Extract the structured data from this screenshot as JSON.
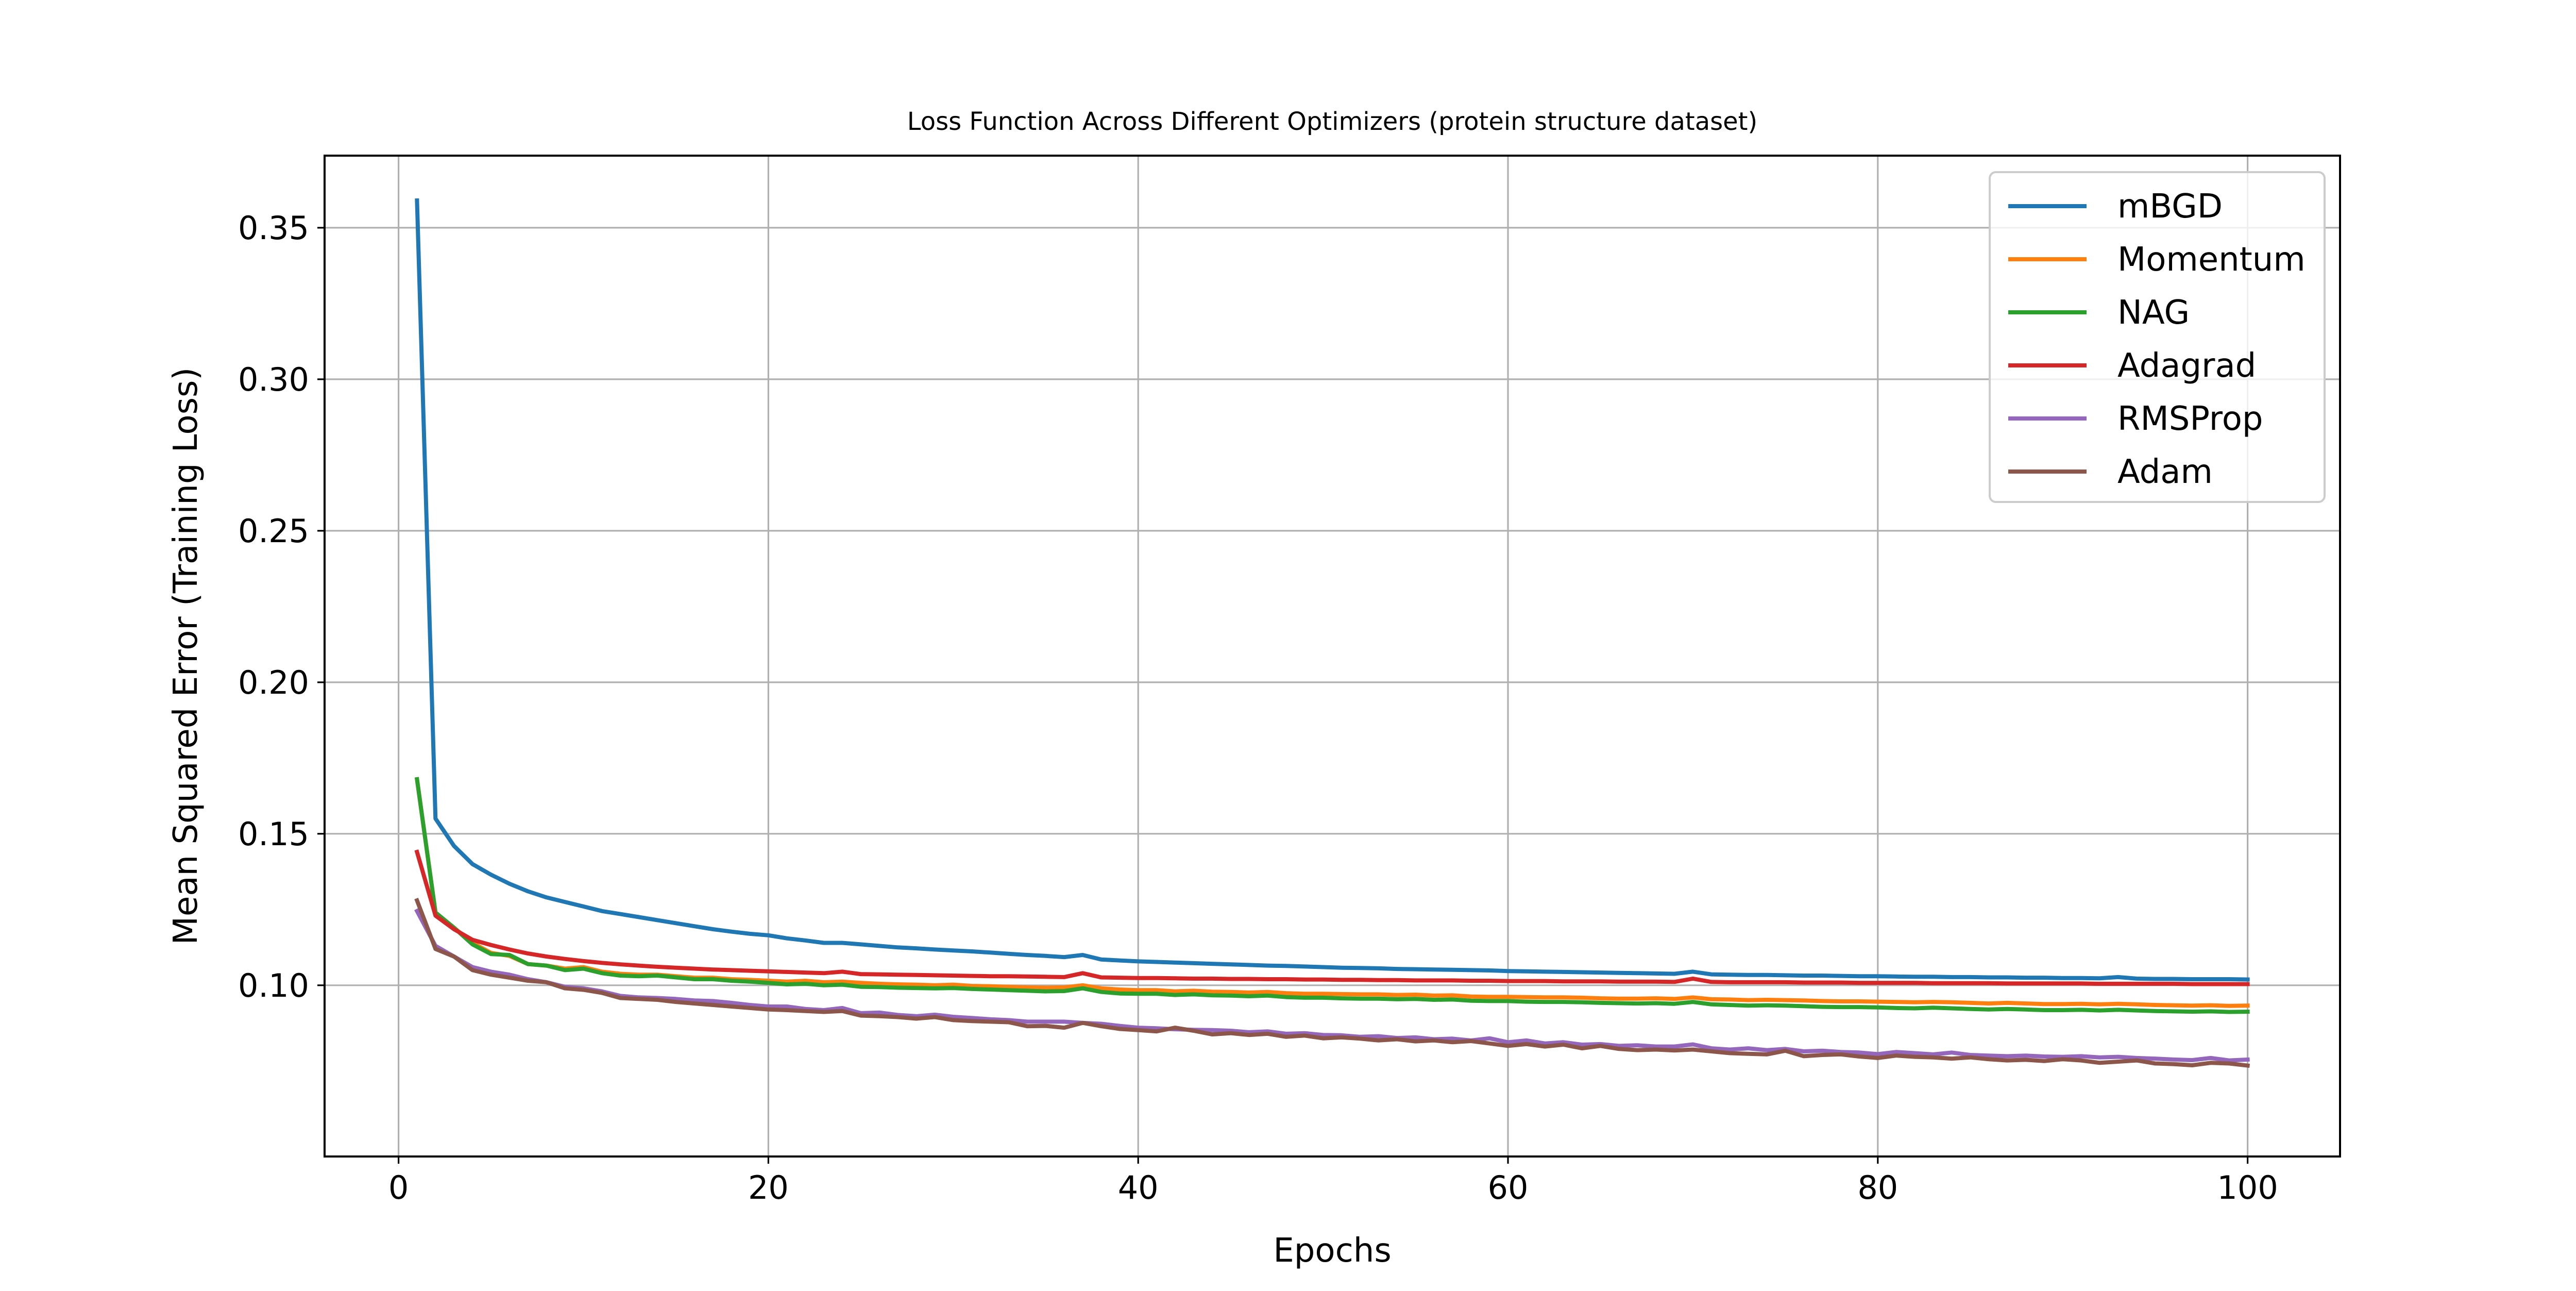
{
  "chart_data": {
    "type": "line",
    "title": "Loss Function Across Different Optimizers (protein structure dataset)",
    "xlabel": "Epochs",
    "ylabel": "Mean Squared Error (Training Loss)",
    "xlim": [
      -4,
      105
    ],
    "ylim": [
      0.0435,
      0.3738
    ],
    "grid": true,
    "legend_position": "upper right",
    "x_ticks": [
      0,
      20,
      40,
      60,
      80,
      100
    ],
    "x_tick_labels": [
      "0",
      "20",
      "40",
      "60",
      "80",
      "100"
    ],
    "y_ticks": [
      0.1,
      0.15,
      0.2,
      0.25,
      0.3,
      0.35
    ],
    "y_tick_labels": [
      "0.10",
      "0.15",
      "0.20",
      "0.25",
      "0.30",
      "0.35"
    ],
    "x": [
      1,
      2,
      3,
      4,
      5,
      6,
      7,
      8,
      9,
      10,
      11,
      12,
      13,
      14,
      15,
      16,
      17,
      18,
      19,
      20,
      21,
      22,
      23,
      24,
      25,
      26,
      27,
      28,
      29,
      30,
      31,
      32,
      33,
      34,
      35,
      36,
      37,
      38,
      39,
      40,
      41,
      42,
      43,
      44,
      45,
      46,
      47,
      48,
      49,
      50,
      51,
      52,
      53,
      54,
      55,
      56,
      57,
      58,
      59,
      60,
      61,
      62,
      63,
      64,
      65,
      66,
      67,
      68,
      69,
      70,
      71,
      72,
      73,
      74,
      75,
      76,
      77,
      78,
      79,
      80,
      81,
      82,
      83,
      84,
      85,
      86,
      87,
      88,
      89,
      90,
      91,
      92,
      93,
      94,
      95,
      96,
      97,
      98,
      99,
      100
    ],
    "series": [
      {
        "name": "mBGD",
        "color": "#1f77b4",
        "values": [
          0.359,
          0.155,
          0.146,
          0.14,
          0.1365,
          0.1335,
          0.131,
          0.129,
          0.1275,
          0.126,
          0.1245,
          0.1235,
          0.1225,
          0.1215,
          0.1205,
          0.1195,
          0.1185,
          0.1177,
          0.117,
          0.1165,
          0.1155,
          0.1148,
          0.114,
          0.114,
          0.1135,
          0.113,
          0.1125,
          0.1122,
          0.1118,
          0.1115,
          0.1112,
          0.1108,
          0.1104,
          0.11,
          0.1097,
          0.1093,
          0.11,
          0.1085,
          0.1082,
          0.1079,
          0.1077,
          0.1075,
          0.1073,
          0.1071,
          0.1069,
          0.1067,
          0.1065,
          0.1064,
          0.1062,
          0.106,
          0.1058,
          0.1057,
          0.1056,
          0.1054,
          0.1053,
          0.1052,
          0.1051,
          0.105,
          0.1049,
          0.1047,
          0.1046,
          0.1045,
          0.1044,
          0.1043,
          0.1042,
          0.1041,
          0.104,
          0.1039,
          0.1038,
          0.1045,
          0.1036,
          0.1035,
          0.1034,
          0.1034,
          0.1033,
          0.1032,
          0.1032,
          0.1031,
          0.103,
          0.103,
          0.1029,
          0.1028,
          0.1028,
          0.1027,
          0.1027,
          0.1026,
          0.1026,
          0.1025,
          0.1025,
          0.1024,
          0.1024,
          0.1023,
          0.1027,
          0.1022,
          0.1021,
          0.1021,
          0.102,
          0.102,
          0.102,
          0.1019
        ]
      },
      {
        "name": "Momentum",
        "color": "#ff7f0e",
        "values": [
          0.168,
          0.124,
          0.119,
          0.114,
          0.1107,
          0.1097,
          0.107,
          0.1065,
          0.1055,
          0.106,
          0.1045,
          0.1038,
          0.1035,
          0.1035,
          0.103,
          0.1025,
          0.1025,
          0.102,
          0.1018,
          0.1015,
          0.1012,
          0.1015,
          0.101,
          0.1012,
          0.1008,
          0.1005,
          0.1003,
          0.1002,
          0.1,
          0.1002,
          0.0998,
          0.0997,
          0.0995,
          0.0993,
          0.0992,
          0.0993,
          0.1,
          0.099,
          0.0986,
          0.0984,
          0.0984,
          0.098,
          0.0982,
          0.0979,
          0.0978,
          0.0976,
          0.0978,
          0.0974,
          0.0972,
          0.0972,
          0.0971,
          0.097,
          0.097,
          0.0968,
          0.0969,
          0.0966,
          0.0967,
          0.0963,
          0.0962,
          0.0962,
          0.0961,
          0.096,
          0.096,
          0.0959,
          0.0957,
          0.0956,
          0.0956,
          0.0957,
          0.0955,
          0.096,
          0.0954,
          0.0953,
          0.0951,
          0.0952,
          0.0951,
          0.095,
          0.0948,
          0.0947,
          0.0947,
          0.0946,
          0.0945,
          0.0944,
          0.0945,
          0.0944,
          0.0942,
          0.094,
          0.0942,
          0.094,
          0.0938,
          0.0938,
          0.0939,
          0.0937,
          0.0939,
          0.0937,
          0.0935,
          0.0934,
          0.0933,
          0.0934,
          0.0932,
          0.0933
        ]
      },
      {
        "name": "NAG",
        "color": "#2ca02c",
        "values": [
          0.168,
          0.124,
          0.119,
          0.1135,
          0.1103,
          0.11,
          0.107,
          0.1065,
          0.105,
          0.1055,
          0.104,
          0.1032,
          0.103,
          0.1032,
          0.1026,
          0.102,
          0.102,
          0.1015,
          0.1012,
          0.1008,
          0.1003,
          0.1005,
          0.1,
          0.1002,
          0.0995,
          0.0994,
          0.0992,
          0.0991,
          0.099,
          0.0991,
          0.0988,
          0.0986,
          0.0984,
          0.0982,
          0.098,
          0.0981,
          0.099,
          0.0978,
          0.0973,
          0.0972,
          0.0972,
          0.0968,
          0.097,
          0.0967,
          0.0966,
          0.0964,
          0.0966,
          0.0961,
          0.0959,
          0.0959,
          0.0957,
          0.0956,
          0.0956,
          0.0954,
          0.0955,
          0.0952,
          0.0953,
          0.0949,
          0.0948,
          0.0948,
          0.0946,
          0.0945,
          0.0945,
          0.0944,
          0.0942,
          0.0941,
          0.094,
          0.0941,
          0.0939,
          0.0945,
          0.0937,
          0.0935,
          0.0933,
          0.0934,
          0.0933,
          0.0931,
          0.0929,
          0.0928,
          0.0928,
          0.0927,
          0.0925,
          0.0924,
          0.0926,
          0.0924,
          0.0922,
          0.092,
          0.0922,
          0.092,
          0.0918,
          0.0918,
          0.0919,
          0.0917,
          0.0919,
          0.0917,
          0.0915,
          0.0914,
          0.0913,
          0.0914,
          0.0912,
          0.0913
        ]
      },
      {
        "name": "Adagrad",
        "color": "#d62728",
        "values": [
          0.144,
          0.123,
          0.1185,
          0.115,
          0.1133,
          0.1118,
          0.1105,
          0.1095,
          0.1087,
          0.108,
          0.1074,
          0.1069,
          0.1065,
          0.1061,
          0.1058,
          0.1055,
          0.1052,
          0.105,
          0.1048,
          0.1046,
          0.1044,
          0.1042,
          0.104,
          0.1045,
          0.1037,
          0.1036,
          0.1035,
          0.1034,
          0.1033,
          0.1032,
          0.1031,
          0.103,
          0.103,
          0.1029,
          0.1028,
          0.1027,
          0.104,
          0.1026,
          0.1025,
          0.1024,
          0.1024,
          0.1023,
          0.1022,
          0.1022,
          0.1021,
          0.1021,
          0.102,
          0.102,
          0.1019,
          0.1019,
          0.1018,
          0.1018,
          0.1017,
          0.1017,
          0.1016,
          0.1016,
          0.1016,
          0.1015,
          0.1015,
          0.1014,
          0.1014,
          0.1014,
          0.1013,
          0.1013,
          0.1013,
          0.1012,
          0.1012,
          0.1012,
          0.1011,
          0.1022,
          0.1011,
          0.101,
          0.101,
          0.101,
          0.101,
          0.1009,
          0.1009,
          0.1009,
          0.1008,
          0.1008,
          0.1008,
          0.1008,
          0.1007,
          0.1007,
          0.1007,
          0.1007,
          0.1006,
          0.1006,
          0.1006,
          0.1006,
          0.1006,
          0.1005,
          0.1005,
          0.1005,
          0.1005,
          0.1005,
          0.1004,
          0.1004,
          0.1004,
          0.1004
        ]
      },
      {
        "name": "RMSProp",
        "color": "#9467bd",
        "values": [
          0.1245,
          0.113,
          0.1095,
          0.106,
          0.1045,
          0.1035,
          0.102,
          0.101,
          0.0995,
          0.099,
          0.098,
          0.0965,
          0.096,
          0.0958,
          0.0955,
          0.095,
          0.0948,
          0.0942,
          0.0935,
          0.093,
          0.093,
          0.0922,
          0.0918,
          0.0925,
          0.0908,
          0.091,
          0.0902,
          0.0898,
          0.0903,
          0.0896,
          0.0892,
          0.0888,
          0.0885,
          0.088,
          0.088,
          0.088,
          0.0876,
          0.0873,
          0.0866,
          0.086,
          0.0858,
          0.0855,
          0.0853,
          0.0852,
          0.085,
          0.0845,
          0.0848,
          0.084,
          0.0842,
          0.0836,
          0.0835,
          0.083,
          0.0832,
          0.0826,
          0.0828,
          0.0822,
          0.0824,
          0.0818,
          0.0825,
          0.0812,
          0.0818,
          0.0808,
          0.0812,
          0.0804,
          0.0806,
          0.08,
          0.0802,
          0.0798,
          0.0798,
          0.0805,
          0.0792,
          0.0788,
          0.0792,
          0.0786,
          0.079,
          0.0782,
          0.0784,
          0.078,
          0.0778,
          0.0773,
          0.078,
          0.0776,
          0.0772,
          0.0778,
          0.077,
          0.0768,
          0.0766,
          0.0768,
          0.0765,
          0.0764,
          0.0766,
          0.0762,
          0.0764,
          0.076,
          0.0758,
          0.0755,
          0.0753,
          0.076,
          0.0752,
          0.0755
        ]
      },
      {
        "name": "Adam",
        "color": "#8c564b",
        "values": [
          0.128,
          0.112,
          0.1095,
          0.105,
          0.1035,
          0.1025,
          0.1015,
          0.101,
          0.099,
          0.0985,
          0.0975,
          0.0958,
          0.0955,
          0.0952,
          0.0945,
          0.094,
          0.0935,
          0.093,
          0.0925,
          0.092,
          0.0918,
          0.0915,
          0.0912,
          0.0915,
          0.09,
          0.0898,
          0.0895,
          0.089,
          0.0895,
          0.0885,
          0.0882,
          0.088,
          0.0878,
          0.0865,
          0.0866,
          0.086,
          0.0876,
          0.0865,
          0.0856,
          0.0852,
          0.0848,
          0.086,
          0.085,
          0.0838,
          0.0842,
          0.0836,
          0.084,
          0.083,
          0.0834,
          0.0825,
          0.0828,
          0.0824,
          0.0818,
          0.0822,
          0.0815,
          0.0818,
          0.0812,
          0.0816,
          0.0808,
          0.08,
          0.0806,
          0.0798,
          0.0804,
          0.0792,
          0.08,
          0.079,
          0.0786,
          0.0788,
          0.0785,
          0.0788,
          0.0782,
          0.0776,
          0.0774,
          0.0772,
          0.0784,
          0.0766,
          0.077,
          0.0772,
          0.0765,
          0.076,
          0.0768,
          0.0764,
          0.0762,
          0.0758,
          0.0762,
          0.0756,
          0.0752,
          0.0754,
          0.075,
          0.0756,
          0.0752,
          0.0744,
          0.0748,
          0.0752,
          0.0742,
          0.074,
          0.0736,
          0.0744,
          0.0742,
          0.0735
        ]
      }
    ]
  }
}
